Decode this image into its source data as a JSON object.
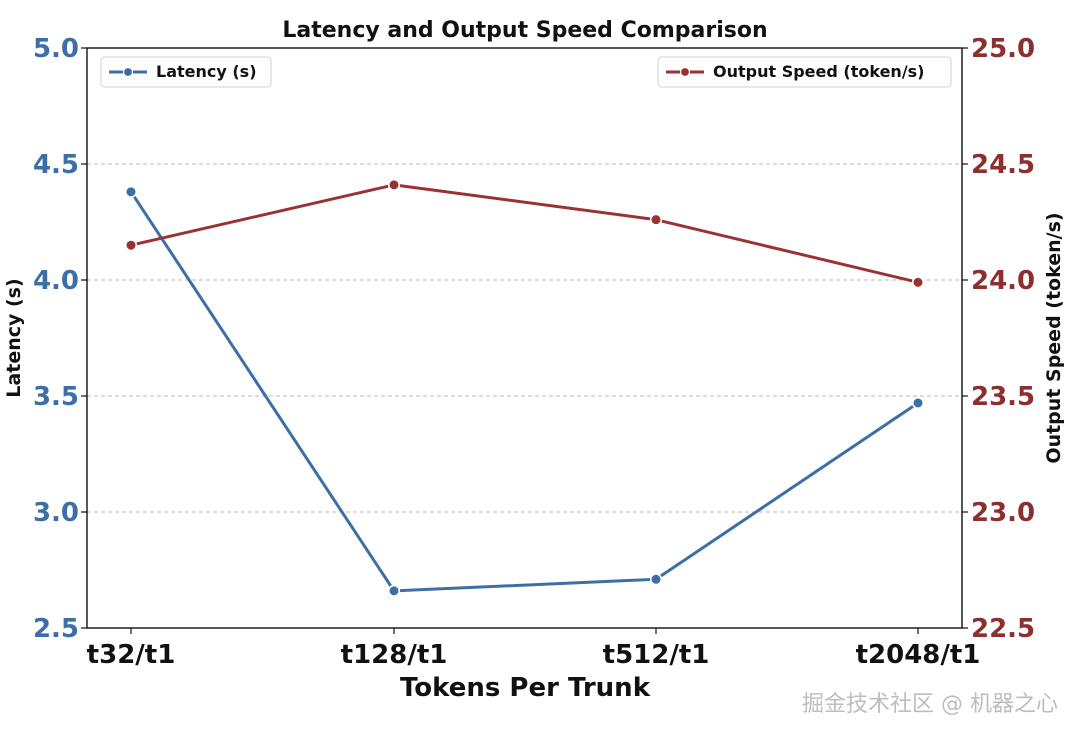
{
  "chart_data": {
    "type": "line",
    "title": "Latency and Output Speed Comparison",
    "xlabel": "Tokens Per Trunk",
    "categories": [
      "t32/t1",
      "t128/t1",
      "t512/t1",
      "t2048/t1"
    ],
    "left_axis": {
      "label": "Latency (s)",
      "ylim": [
        2.5,
        5.0
      ],
      "ticks": [
        "2.5",
        "3.0",
        "3.5",
        "4.0",
        "4.5",
        "5.0"
      ],
      "color": "#3d6fa6"
    },
    "right_axis": {
      "label": "Output Speed (token/s)",
      "ylim": [
        22.5,
        25.0
      ],
      "ticks": [
        "22.5",
        "23.0",
        "23.5",
        "24.0",
        "24.5",
        "25.0"
      ],
      "color": "#8b2f2f"
    },
    "series": [
      {
        "name": "Latency (s)",
        "axis": "left",
        "values": [
          4.38,
          2.66,
          2.71,
          3.47
        ],
        "color": "#3d6fa6"
      },
      {
        "name": "Output Speed (token/s)",
        "axis": "right",
        "values": [
          24.15,
          24.41,
          24.26,
          23.99
        ],
        "color": "#9b3232"
      }
    ],
    "grid": true,
    "legend_positions": [
      "top-left",
      "top-right"
    ]
  },
  "watermark": "掘金技术社区 @ 机器之心"
}
